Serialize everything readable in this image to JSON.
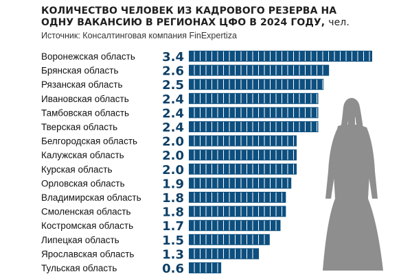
{
  "title": "КОЛИЧЕСТВО ЧЕЛОВЕК ИЗ КАДРОВОГО РЕЗЕРВА НА ОДНУ ВАКАНСИЮ В РЕГИОНАХ ЦФО В 2024 ГОДУ,",
  "title_unit": "чел.",
  "source": "Источник: Консалтинговая компания FinExpertiza",
  "chart_data": {
    "type": "bar",
    "orientation": "horizontal",
    "categories": [
      "Воронежская область",
      "Брянская область",
      "Рязанская область",
      "Ивановская область",
      "Тамбовская область",
      "Тверская область",
      "Белгородская область",
      "Калужская область",
      "Курская область",
      "Орловская область",
      "Владимирская область",
      "Смоленская область",
      "Костромская область",
      "Липецкая область",
      "Ярославская область",
      "Тульская область"
    ],
    "values": [
      3.4,
      2.6,
      2.5,
      2.4,
      2.4,
      2.4,
      2.0,
      2.0,
      2.0,
      1.9,
      1.8,
      1.8,
      1.7,
      1.5,
      1.3,
      0.6
    ],
    "value_labels": [
      "3.4",
      "2.6",
      "2.5",
      "2.4",
      "2.4",
      "2.4",
      "2.0",
      "2.0",
      "2.0",
      "1.9",
      "1.8",
      "1.8",
      "1.7",
      "1.5",
      "1.3",
      "0.6"
    ],
    "xlim": [
      0,
      3.4
    ],
    "grid": false,
    "bar_color": "#0d4f7f",
    "bar_stripe_color": "#ffffff",
    "value_label_color": "#0d3f66",
    "decoration": "woman-silhouette"
  }
}
